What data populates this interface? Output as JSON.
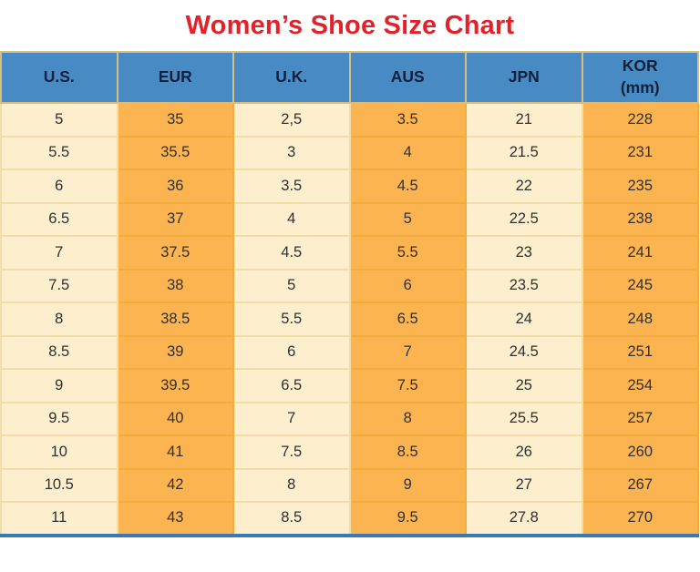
{
  "title": "Women’s Shoe Size Chart",
  "colors": {
    "title_red": "#e2222b",
    "header_blue": "#488ac4",
    "header_text": "#13203a",
    "cell_cream": "#fdeecd",
    "cell_orange": "#fbb44f",
    "border_gold_light": "#f0dda8",
    "border_gold_orange": "#f1ac3f",
    "border_gold_header": "#d9bd7d",
    "bottom_border_blue": "#3a7ab2",
    "data_text": "#303030"
  },
  "header": {
    "columns": [
      {
        "label": "U.S.",
        "sub": ""
      },
      {
        "label": "EUR",
        "sub": ""
      },
      {
        "label": "U.K.",
        "sub": ""
      },
      {
        "label": "AUS",
        "sub": ""
      },
      {
        "label": "JPN",
        "sub": ""
      },
      {
        "label": "KOR",
        "sub": "(mm)"
      }
    ]
  },
  "chart_data": {
    "type": "table",
    "title": "Women’s Shoe Size Chart",
    "columns": [
      "U.S.",
      "EUR",
      "U.K.",
      "AUS",
      "JPN",
      "KOR (mm)"
    ],
    "rows": [
      [
        "5",
        "35",
        "2,5",
        "3.5",
        "21",
        "228"
      ],
      [
        "5.5",
        "35.5",
        "3",
        "4",
        "21.5",
        "231"
      ],
      [
        "6",
        "36",
        "3.5",
        "4.5",
        "22",
        "235"
      ],
      [
        "6.5",
        "37",
        "4",
        "5",
        "22.5",
        "238"
      ],
      [
        "7",
        "37.5",
        "4.5",
        "5.5",
        "23",
        "241"
      ],
      [
        "7.5",
        "38",
        "5",
        "6",
        "23.5",
        "245"
      ],
      [
        "8",
        "38.5",
        "5.5",
        "6.5",
        "24",
        "248"
      ],
      [
        "8.5",
        "39",
        "6",
        "7",
        "24.5",
        "251"
      ],
      [
        "9",
        "39.5",
        "6.5",
        "7.5",
        "25",
        "254"
      ],
      [
        "9.5",
        "40",
        "7",
        "8",
        "25.5",
        "257"
      ],
      [
        "10",
        "41",
        "7.5",
        "8.5",
        "26",
        "260"
      ],
      [
        "10.5",
        "42",
        "8",
        "9",
        "27",
        "267"
      ],
      [
        "11",
        "43",
        "8.5",
        "9.5",
        "27.8",
        "270"
      ]
    ]
  }
}
